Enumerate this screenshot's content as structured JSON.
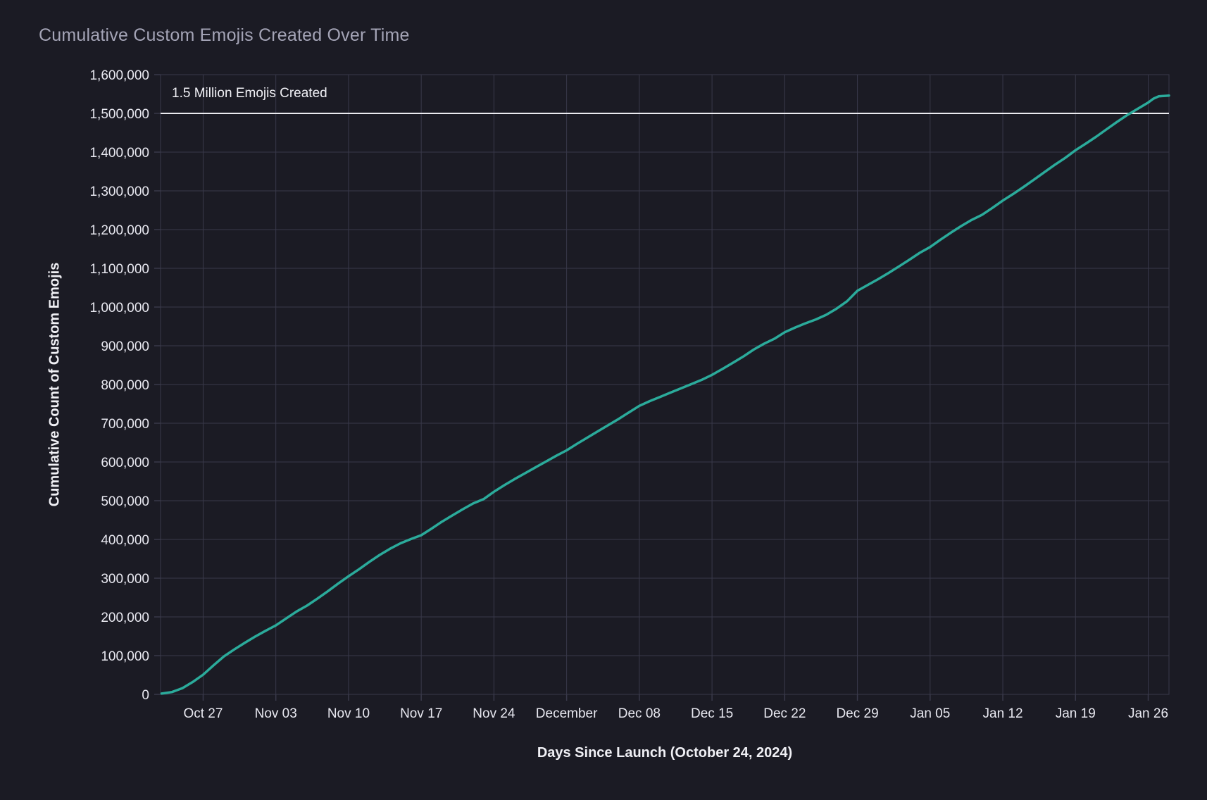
{
  "colors": {
    "background": "#1b1b24",
    "grid": "#39394a",
    "line": "#2bab9b",
    "reference_line": "#ebebf0",
    "title_text": "#a4a4b6",
    "tick_text": "#e8e8f0",
    "axis_title_text": "#f0f0f5"
  },
  "chart_data": {
    "type": "line",
    "title": "Cumulative Custom Emojis Created Over Time",
    "xlabel": "Days Since Launch (October 24, 2024)",
    "ylabel": "Cumulative Count of Custom Emojis",
    "legend": "none",
    "grid": "on",
    "x_domain_days": [
      -1.1,
      96
    ],
    "ylim": [
      0,
      1600000
    ],
    "y_ticks": [
      {
        "value": 0,
        "label": "0"
      },
      {
        "value": 100000,
        "label": "100,000"
      },
      {
        "value": 200000,
        "label": "200,000"
      },
      {
        "value": 300000,
        "label": "300,000"
      },
      {
        "value": 400000,
        "label": "400,000"
      },
      {
        "value": 500000,
        "label": "500,000"
      },
      {
        "value": 600000,
        "label": "600,000"
      },
      {
        "value": 700000,
        "label": "700,000"
      },
      {
        "value": 800000,
        "label": "800,000"
      },
      {
        "value": 900000,
        "label": "900,000"
      },
      {
        "value": 1000000,
        "label": "1,000,000"
      },
      {
        "value": 1100000,
        "label": "1,100,000"
      },
      {
        "value": 1200000,
        "label": "1,200,000"
      },
      {
        "value": 1300000,
        "label": "1,300,000"
      },
      {
        "value": 1400000,
        "label": "1,400,000"
      },
      {
        "value": 1500000,
        "label": "1,500,000"
      },
      {
        "value": 1600000,
        "label": "1,600,000"
      }
    ],
    "x_ticks": [
      {
        "day": 3,
        "label": "Oct 27"
      },
      {
        "day": 10,
        "label": "Nov 03"
      },
      {
        "day": 17,
        "label": "Nov 10"
      },
      {
        "day": 24,
        "label": "Nov 17"
      },
      {
        "day": 31,
        "label": "Nov 24"
      },
      {
        "day": 38,
        "label": "December"
      },
      {
        "day": 45,
        "label": "Dec 08"
      },
      {
        "day": 52,
        "label": "Dec 15"
      },
      {
        "day": 59,
        "label": "Dec 22"
      },
      {
        "day": 66,
        "label": "Dec 29"
      },
      {
        "day": 73,
        "label": "Jan 05"
      },
      {
        "day": 80,
        "label": "Jan 12"
      },
      {
        "day": 87,
        "label": "Jan 19"
      },
      {
        "day": 94,
        "label": "Jan 26"
      }
    ],
    "reference_line": {
      "y": 1500000,
      "label": "1.5 Million Emojis Created"
    },
    "series": [
      {
        "name": "cumulative-custom-emojis",
        "color": "#2bab9b",
        "points": [
          [
            -1,
            2000
          ],
          [
            0,
            6000
          ],
          [
            1,
            16000
          ],
          [
            2,
            32000
          ],
          [
            3,
            51000
          ],
          [
            4,
            75000
          ],
          [
            5,
            98000
          ],
          [
            6,
            116000
          ],
          [
            7,
            133000
          ],
          [
            8,
            149000
          ],
          [
            9,
            164000
          ],
          [
            10,
            178000
          ],
          [
            11,
            196000
          ],
          [
            12,
            214000
          ],
          [
            13,
            229000
          ],
          [
            14,
            247000
          ],
          [
            15,
            266000
          ],
          [
            16,
            286000
          ],
          [
            17,
            305000
          ],
          [
            18,
            323000
          ],
          [
            19,
            342000
          ],
          [
            20,
            360000
          ],
          [
            21,
            376000
          ],
          [
            22,
            390000
          ],
          [
            23,
            401000
          ],
          [
            24,
            411000
          ],
          [
            25,
            428000
          ],
          [
            26,
            446000
          ],
          [
            27,
            462000
          ],
          [
            28,
            478000
          ],
          [
            29,
            493000
          ],
          [
            30,
            504000
          ],
          [
            31,
            523000
          ],
          [
            32,
            540000
          ],
          [
            33,
            556000
          ],
          [
            34,
            571000
          ],
          [
            35,
            586000
          ],
          [
            36,
            601000
          ],
          [
            37,
            616000
          ],
          [
            38,
            630000
          ],
          [
            39,
            647000
          ],
          [
            40,
            663000
          ],
          [
            41,
            679000
          ],
          [
            42,
            695000
          ],
          [
            43,
            711000
          ],
          [
            44,
            728000
          ],
          [
            45,
            745000
          ],
          [
            46,
            757000
          ],
          [
            47,
            768000
          ],
          [
            48,
            779000
          ],
          [
            49,
            790000
          ],
          [
            50,
            801000
          ],
          [
            51,
            812000
          ],
          [
            52,
            825000
          ],
          [
            53,
            840000
          ],
          [
            54,
            856000
          ],
          [
            55,
            872000
          ],
          [
            56,
            890000
          ],
          [
            57,
            905000
          ],
          [
            58,
            918000
          ],
          [
            59,
            935000
          ],
          [
            60,
            947000
          ],
          [
            61,
            958000
          ],
          [
            62,
            968000
          ],
          [
            63,
            980000
          ],
          [
            64,
            996000
          ],
          [
            65,
            1015000
          ],
          [
            66,
            1042000
          ],
          [
            67,
            1057000
          ],
          [
            68,
            1072000
          ],
          [
            69,
            1088000
          ],
          [
            70,
            1105000
          ],
          [
            71,
            1122000
          ],
          [
            72,
            1140000
          ],
          [
            73,
            1155000
          ],
          [
            74,
            1174000
          ],
          [
            75,
            1192000
          ],
          [
            76,
            1209000
          ],
          [
            77,
            1225000
          ],
          [
            78,
            1238000
          ],
          [
            79,
            1256000
          ],
          [
            80,
            1275000
          ],
          [
            81,
            1292000
          ],
          [
            82,
            1310000
          ],
          [
            83,
            1329000
          ],
          [
            84,
            1348000
          ],
          [
            85,
            1367000
          ],
          [
            86,
            1385000
          ],
          [
            87,
            1405000
          ],
          [
            88,
            1422000
          ],
          [
            89,
            1440000
          ],
          [
            90,
            1459000
          ],
          [
            91,
            1478000
          ],
          [
            92,
            1496000
          ],
          [
            93,
            1512000
          ],
          [
            94,
            1528000
          ],
          [
            94.5,
            1538000
          ],
          [
            95,
            1544000
          ],
          [
            96,
            1546000
          ]
        ]
      }
    ]
  }
}
